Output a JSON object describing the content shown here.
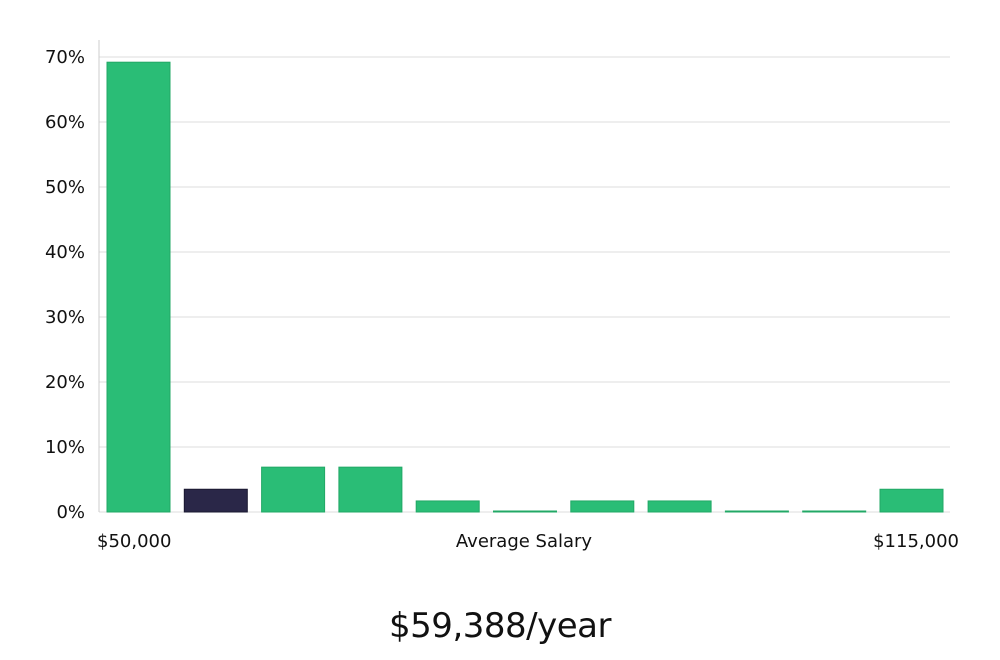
{
  "chart_data": {
    "type": "bar",
    "title": "",
    "xlabel": "Average Salary",
    "ylabel": "",
    "x_start_label": "$50,000",
    "x_end_label": "$115,000",
    "y_ticks": [
      "0%",
      "10%",
      "20%",
      "30%",
      "40%",
      "50%",
      "60%",
      "70%"
    ],
    "ylim": [
      0,
      70
    ],
    "grid": true,
    "values": [
      69.2,
      3.5,
      6.9,
      6.9,
      1.7,
      0,
      1.7,
      1.7,
      0,
      0,
      3.5
    ],
    "highlight_index": 1,
    "colors": {
      "bar": "#2abd76",
      "bar_edge": "#22a866",
      "highlight": "#2a2748",
      "highlight_edge": "#1a1830"
    }
  },
  "salary": {
    "display": "$59,388/year"
  }
}
